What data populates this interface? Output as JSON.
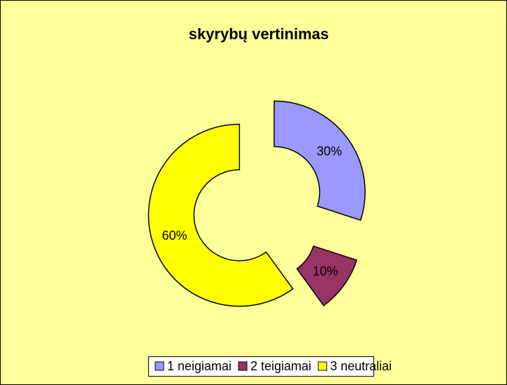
{
  "chart_data": {
    "type": "doughnut",
    "title": "skyrybų vertinimas",
    "categories": [
      "1 neigiamai",
      "2 teigiamai",
      "3 neutraliai"
    ],
    "values": [
      30,
      10,
      60
    ],
    "value_labels": [
      "30%",
      "10%",
      "60%"
    ],
    "colors": [
      "#9999FF",
      "#993366",
      "#FFFF00"
    ],
    "legend": "bottom"
  }
}
